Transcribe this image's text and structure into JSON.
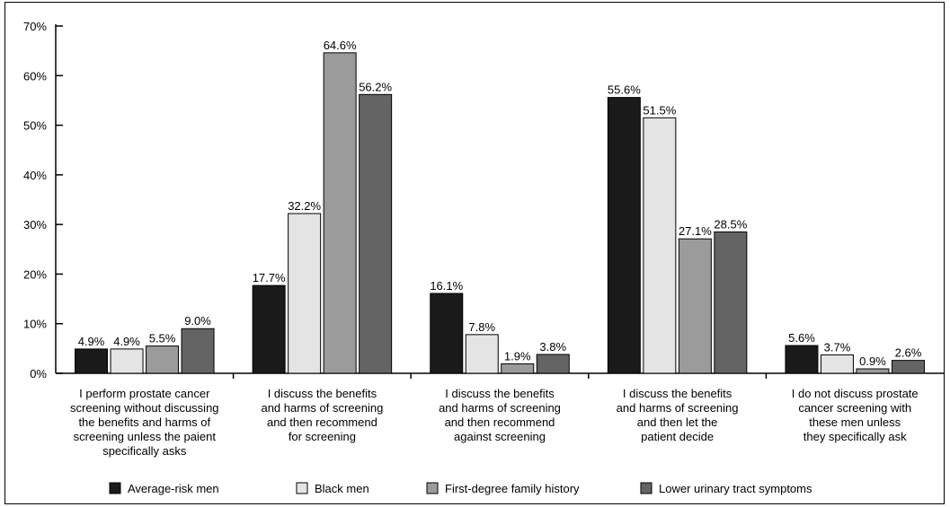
{
  "chart_data": {
    "type": "bar",
    "title": "",
    "xlabel": "",
    "ylabel": "",
    "ylim": [
      0,
      70
    ],
    "yticks": [
      "0%",
      "10%",
      "20%",
      "30%",
      "40%",
      "50%",
      "60%",
      "70%"
    ],
    "categories": [
      [
        "I perform prostate cancer",
        "screening without discussing",
        "the benefits and harms of",
        "screening unless the paient",
        "specifically asks"
      ],
      [
        "I discuss the benefits",
        "and harms of screening",
        "and then recommend",
        "for screening"
      ],
      [
        "I discuss the benefits",
        "and harms of screening",
        "and then recommend",
        "against screening"
      ],
      [
        "I discuss the benefits",
        "and harms of screening",
        "and then let the",
        "patient decide"
      ],
      [
        "I do not discuss prostate",
        "cancer screening with",
        "these men unless",
        "they specifically ask"
      ]
    ],
    "series": [
      {
        "name": "Average-risk men",
        "color": "#1a1a1a",
        "values": [
          4.9,
          17.7,
          16.1,
          55.6,
          5.6
        ],
        "labels": [
          "4.9%",
          "17.7%",
          "16.1%",
          "55.6%",
          "5.6%"
        ]
      },
      {
        "name": "Black men",
        "color": "#e4e4e4",
        "values": [
          4.9,
          32.2,
          7.8,
          51.5,
          3.7
        ],
        "labels": [
          "4.9%",
          "32.2%",
          "7.8%",
          "51.5%",
          "3.7%"
        ]
      },
      {
        "name": "First-degree family history",
        "color": "#9b9b9b",
        "values": [
          5.5,
          64.6,
          1.9,
          27.1,
          0.9
        ],
        "labels": [
          "5.5%",
          "64.6%",
          "1.9%",
          "27.1%",
          "0.9%"
        ]
      },
      {
        "name": "Lower urinary tract symptoms",
        "color": "#646464",
        "values": [
          9.0,
          56.2,
          3.8,
          28.5,
          2.6
        ],
        "labels": [
          "9.0%",
          "56.2%",
          "3.8%",
          "28.5%",
          "2.6%"
        ]
      }
    ],
    "legend": "bottom",
    "grid": false
  }
}
